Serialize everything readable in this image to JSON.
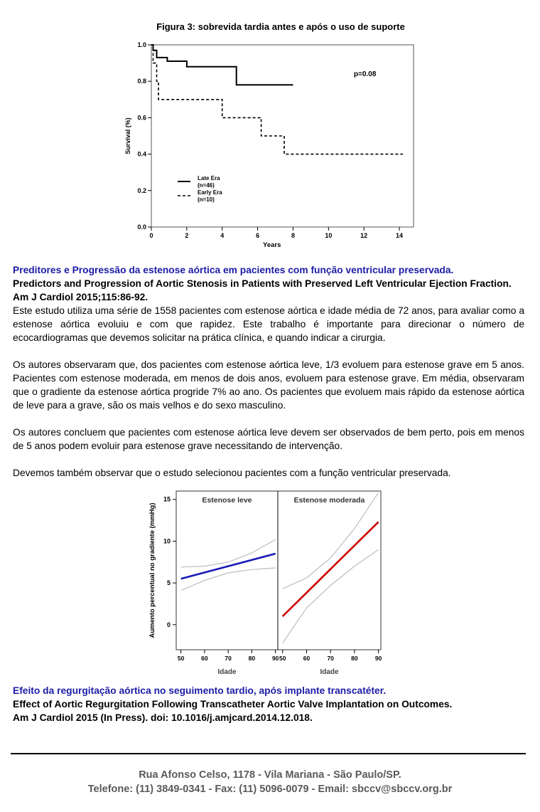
{
  "figure3": {
    "title": "Figura 3: sobrevida tardia antes e após o uso de suporte",
    "chart_data": {
      "type": "line",
      "xlabel": "Years",
      "ylabel": "Survival (%)",
      "xlim": [
        0,
        14.8
      ],
      "ylim": [
        0,
        1.0
      ],
      "xticks": [
        "0",
        "2",
        "4",
        "6",
        "8",
        "10",
        "12",
        "14"
      ],
      "yticks": [
        "0.0",
        "0.2",
        "0.4",
        "0.6",
        "0.8",
        "1.0"
      ],
      "annotation": "p=0.08",
      "legend": [
        {
          "name": "Late Era",
          "sub": "(n=46)"
        },
        {
          "name": "Early Era",
          "sub": "(n=10)"
        }
      ],
      "series": [
        {
          "name": "Late Era",
          "points": [
            [
              0,
              1.0
            ],
            [
              0.1,
              1.0
            ],
            [
              0.1,
              0.97
            ],
            [
              0.3,
              0.97
            ],
            [
              0.3,
              0.93
            ],
            [
              0.9,
              0.93
            ],
            [
              0.9,
              0.91
            ],
            [
              2.0,
              0.91
            ],
            [
              2.0,
              0.88
            ],
            [
              4.8,
              0.88
            ],
            [
              4.8,
              0.78
            ],
            [
              8.0,
              0.78
            ]
          ]
        },
        {
          "name": "Early Era",
          "points": [
            [
              0,
              1.0
            ],
            [
              0.1,
              1.0
            ],
            [
              0.1,
              0.9
            ],
            [
              0.3,
              0.9
            ],
            [
              0.3,
              0.8
            ],
            [
              0.4,
              0.8
            ],
            [
              0.4,
              0.7
            ],
            [
              4.0,
              0.7
            ],
            [
              4.0,
              0.6
            ],
            [
              6.2,
              0.6
            ],
            [
              6.2,
              0.5
            ],
            [
              7.5,
              0.5
            ],
            [
              7.5,
              0.4
            ],
            [
              14.2,
              0.4
            ]
          ]
        }
      ]
    }
  },
  "article1": {
    "title_pt": "Preditores e Progressão da estenose aórtica em pacientes com função ventricular preservada.",
    "title_en": "Predictors and Progression of Aortic Stenosis in Patients with Preserved Left Ventricular Ejection Fraction.",
    "citation": "Am J Cardiol 2015;115:86-92.",
    "paragraphs": [
      "Este estudo utiliza uma série de 1558 pacientes com estenose aórtica e idade média de 72 anos, para avaliar como a estenose aórtica evoluiu e com que rapidez. Este trabalho é importante para direcionar o número de ecocardiogramas que devemos solicitar na prática clínica, e quando indicar a cirurgia.",
      "Os autores observaram que, dos pacientes com estenose aórtica leve, 1/3 evoluem para estenose grave em 5 anos. Pacientes com estenose moderada, em menos de dois anos, evoluem para estenose grave. Em média, observaram que o gradiente da estenose aórtica progride 7% ao ano. Os pacientes que evoluem mais rápido da estenose aórtica de leve para a grave, são os mais velhos e do sexo masculino.",
      "Os autores concluem que pacientes com estenose aórtica leve devem ser observados de bem perto, pois em menos de 5 anos podem evoluir para estenose grave necessitando de intervenção.",
      "Devemos também observar que o estudo selecionou pacientes com a função ventricular preservada."
    ]
  },
  "figure_gradient": {
    "chart_data": {
      "type": "line",
      "ylabel": "Aumento percentual no gradiente (mmHg)",
      "xlabel": "Idade",
      "ylim": [
        -3,
        16
      ],
      "yticks": [
        "0",
        "5",
        "10",
        "15"
      ],
      "xticks": [
        "50",
        "60",
        "70",
        "80",
        "90"
      ],
      "xlim": [
        48,
        91
      ],
      "panels": [
        {
          "title": "Estenose leve",
          "color": "#1a1ab8",
          "line": [
            [
              50,
              5.5
            ],
            [
              90,
              8.5
            ]
          ],
          "upper": [
            [
              50,
              6.9
            ],
            [
              60,
              7.0
            ],
            [
              70,
              7.5
            ],
            [
              80,
              8.6
            ],
            [
              90,
              10.2
            ]
          ],
          "lower": [
            [
              50,
              4.1
            ],
            [
              60,
              5.3
            ],
            [
              70,
              6.2
            ],
            [
              80,
              6.6
            ],
            [
              90,
              6.8
            ]
          ]
        },
        {
          "title": "Estenose moderada",
          "color": "#cc0000",
          "line": [
            [
              50,
              1.0
            ],
            [
              90,
              12.3
            ]
          ],
          "upper": [
            [
              50,
              4.3
            ],
            [
              60,
              5.6
            ],
            [
              70,
              8.0
            ],
            [
              80,
              11.5
            ],
            [
              90,
              15.8
            ]
          ],
          "lower": [
            [
              50,
              -2.2
            ],
            [
              60,
              2.0
            ],
            [
              70,
              4.7
            ],
            [
              80,
              7.0
            ],
            [
              90,
              9.0
            ]
          ]
        }
      ]
    }
  },
  "article2": {
    "title_pt": "Efeito da regurgitação aórtica no seguimento tardio, após implante transcatéter.",
    "title_en": "Effect of Aortic Regurgitation Following Transcatheter Aortic Valve Implantation on Outcomes.",
    "citation": "Am J Cardiol 2015 (In Press).  doi: 10.1016/j.amjcard.2014.12.018."
  },
  "footer": {
    "address": "Rua Afonso Celso, 1178 - Vila Mariana - São Paulo/SP.",
    "contact": "Telefone: (11) 3849-0341 - Fax: (11) 5096-0079 - Email: sbccv@sbccv.org.br"
  }
}
